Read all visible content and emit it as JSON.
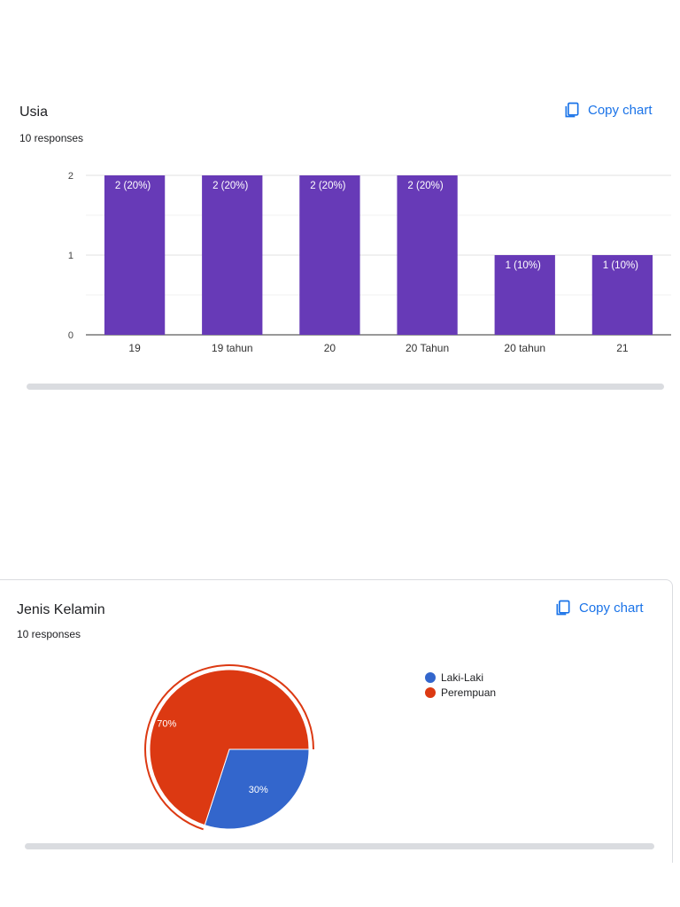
{
  "copy_label": "Copy chart",
  "icons": {
    "copy": "copy-icon"
  },
  "colors": {
    "accent": "#1a73e8",
    "bar": "#673ab7",
    "male": "#3366cc",
    "female": "#dc3912"
  },
  "chart_data": [
    {
      "type": "bar",
      "title": "Usia",
      "subtitle": "10 responses",
      "categories": [
        "19",
        "19 tahun",
        "20",
        "20 Tahun",
        "20 tahun",
        "21"
      ],
      "values": [
        2,
        2,
        2,
        2,
        1,
        1
      ],
      "data_labels": [
        "2 (20%)",
        "2 (20%)",
        "2 (20%)",
        "2 (20%)",
        "1 (10%)",
        "1 (10%)"
      ],
      "y_ticks": [
        "0",
        "1",
        "2"
      ],
      "ylim": [
        0,
        2
      ],
      "grid": true
    },
    {
      "type": "pie",
      "title": "Jenis Kelamin",
      "subtitle": "10 responses",
      "labels": [
        "Laki-Laki",
        "Perempuan"
      ],
      "values": [
        30,
        70
      ],
      "slice_labels": [
        "30%",
        "70%"
      ],
      "selected": "Perempuan",
      "legend_position": "right"
    }
  ]
}
